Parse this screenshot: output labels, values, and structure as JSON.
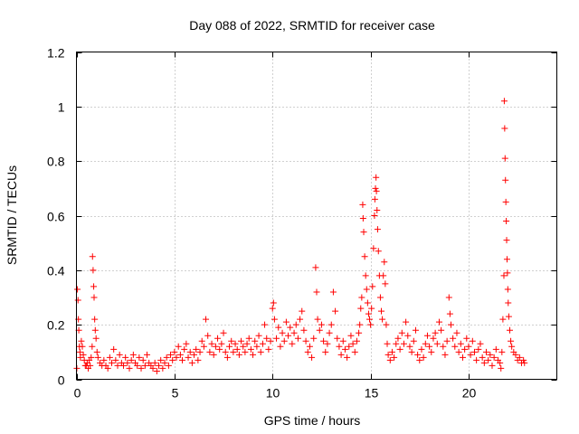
{
  "chart_data": {
    "type": "scatter",
    "title": "Day 088 of 2022, SRMTID for receiver case",
    "xlabel": "GPS time / hours",
    "ylabel": "SRMTID / TECUs",
    "xlim": [
      0,
      24.5
    ],
    "ylim": [
      0,
      1.2
    ],
    "x_ticks": [
      0,
      5,
      10,
      15,
      20
    ],
    "x_tick_labels": [
      "0",
      "5",
      "10",
      "15",
      "20"
    ],
    "y_ticks": [
      0,
      0.2,
      0.4,
      0.6,
      0.8,
      1.0,
      1.2
    ],
    "y_tick_labels": [
      "0",
      "0.2",
      "0.4",
      "0.6",
      "0.8",
      "1",
      "1.2"
    ],
    "grid": true,
    "marker": "+",
    "color": "#ff0000",
    "series": [
      {
        "name": "SRMTID",
        "points": [
          [
            0.02,
            0.04
          ],
          [
            0.05,
            0.33
          ],
          [
            0.08,
            0.29
          ],
          [
            0.1,
            0.22
          ],
          [
            0.12,
            0.18
          ],
          [
            0.15,
            0.12
          ],
          [
            0.18,
            0.1
          ],
          [
            0.2,
            0.08
          ],
          [
            0.25,
            0.14
          ],
          [
            0.3,
            0.12
          ],
          [
            0.35,
            0.09
          ],
          [
            0.4,
            0.07
          ],
          [
            0.45,
            0.05
          ],
          [
            0.5,
            0.05
          ],
          [
            0.55,
            0.06
          ],
          [
            0.6,
            0.04
          ],
          [
            0.65,
            0.07
          ],
          [
            0.7,
            0.05
          ],
          [
            0.75,
            0.08
          ],
          [
            0.8,
            0.12
          ],
          [
            0.82,
            0.45
          ],
          [
            0.85,
            0.4
          ],
          [
            0.88,
            0.34
          ],
          [
            0.9,
            0.3
          ],
          [
            0.93,
            0.22
          ],
          [
            0.96,
            0.18
          ],
          [
            1.0,
            0.15
          ],
          [
            1.05,
            0.1
          ],
          [
            1.1,
            0.08
          ],
          [
            1.2,
            0.06
          ],
          [
            1.3,
            0.05
          ],
          [
            1.4,
            0.07
          ],
          [
            1.5,
            0.05
          ],
          [
            1.6,
            0.04
          ],
          [
            1.7,
            0.08
          ],
          [
            1.8,
            0.06
          ],
          [
            1.9,
            0.11
          ],
          [
            2.0,
            0.07
          ],
          [
            2.1,
            0.05
          ],
          [
            2.2,
            0.09
          ],
          [
            2.3,
            0.06
          ],
          [
            2.4,
            0.05
          ],
          [
            2.5,
            0.08
          ],
          [
            2.6,
            0.06
          ],
          [
            2.7,
            0.04
          ],
          [
            2.8,
            0.07
          ],
          [
            2.9,
            0.09
          ],
          [
            3.0,
            0.06
          ],
          [
            3.1,
            0.05
          ],
          [
            3.2,
            0.08
          ],
          [
            3.3,
            0.04
          ],
          [
            3.4,
            0.07
          ],
          [
            3.5,
            0.05
          ],
          [
            3.6,
            0.09
          ],
          [
            3.7,
            0.06
          ],
          [
            3.8,
            0.05
          ],
          [
            3.9,
            0.04
          ],
          [
            4.0,
            0.06
          ],
          [
            4.1,
            0.03
          ],
          [
            4.2,
            0.05
          ],
          [
            4.3,
            0.07
          ],
          [
            4.4,
            0.04
          ],
          [
            4.5,
            0.06
          ],
          [
            4.6,
            0.08
          ],
          [
            4.7,
            0.05
          ],
          [
            4.8,
            0.09
          ],
          [
            4.9,
            0.07
          ],
          [
            5.0,
            0.1
          ],
          [
            5.1,
            0.08
          ],
          [
            5.2,
            0.12
          ],
          [
            5.3,
            0.09
          ],
          [
            5.4,
            0.07
          ],
          [
            5.5,
            0.11
          ],
          [
            5.6,
            0.13
          ],
          [
            5.7,
            0.08
          ],
          [
            5.8,
            0.1
          ],
          [
            5.9,
            0.06
          ],
          [
            6.0,
            0.09
          ],
          [
            6.1,
            0.11
          ],
          [
            6.2,
            0.07
          ],
          [
            6.3,
            0.1
          ],
          [
            6.4,
            0.14
          ],
          [
            6.5,
            0.12
          ],
          [
            6.6,
            0.22
          ],
          [
            6.7,
            0.16
          ],
          [
            6.8,
            0.1
          ],
          [
            6.9,
            0.13
          ],
          [
            7.0,
            0.09
          ],
          [
            7.1,
            0.12
          ],
          [
            7.2,
            0.15
          ],
          [
            7.3,
            0.11
          ],
          [
            7.4,
            0.13
          ],
          [
            7.5,
            0.17
          ],
          [
            7.6,
            0.1
          ],
          [
            7.7,
            0.08
          ],
          [
            7.8,
            0.12
          ],
          [
            7.9,
            0.14
          ],
          [
            8.0,
            0.1
          ],
          [
            8.1,
            0.13
          ],
          [
            8.2,
            0.11
          ],
          [
            8.3,
            0.09
          ],
          [
            8.4,
            0.14
          ],
          [
            8.5,
            0.12
          ],
          [
            8.6,
            0.1
          ],
          [
            8.7,
            0.13
          ],
          [
            8.8,
            0.15
          ],
          [
            8.9,
            0.11
          ],
          [
            9.0,
            0.09
          ],
          [
            9.1,
            0.14
          ],
          [
            9.2,
            0.12
          ],
          [
            9.3,
            0.16
          ],
          [
            9.4,
            0.1
          ],
          [
            9.5,
            0.13
          ],
          [
            9.6,
            0.2
          ],
          [
            9.7,
            0.15
          ],
          [
            9.8,
            0.11
          ],
          [
            9.9,
            0.14
          ],
          [
            10.0,
            0.26
          ],
          [
            10.05,
            0.28
          ],
          [
            10.1,
            0.22
          ],
          [
            10.2,
            0.15
          ],
          [
            10.3,
            0.19
          ],
          [
            10.4,
            0.12
          ],
          [
            10.5,
            0.17
          ],
          [
            10.6,
            0.14
          ],
          [
            10.7,
            0.21
          ],
          [
            10.8,
            0.16
          ],
          [
            10.9,
            0.19
          ],
          [
            11.0,
            0.13
          ],
          [
            11.1,
            0.17
          ],
          [
            11.2,
            0.2
          ],
          [
            11.3,
            0.15
          ],
          [
            11.4,
            0.22
          ],
          [
            11.5,
            0.25
          ],
          [
            11.6,
            0.18
          ],
          [
            11.7,
            0.14
          ],
          [
            11.8,
            0.1
          ],
          [
            11.9,
            0.12
          ],
          [
            12.0,
            0.08
          ],
          [
            12.1,
            0.15
          ],
          [
            12.2,
            0.41
          ],
          [
            12.25,
            0.32
          ],
          [
            12.3,
            0.22
          ],
          [
            12.4,
            0.18
          ],
          [
            12.5,
            0.2
          ],
          [
            12.6,
            0.14
          ],
          [
            12.7,
            0.1
          ],
          [
            12.8,
            0.13
          ],
          [
            12.9,
            0.17
          ],
          [
            13.0,
            0.2
          ],
          [
            13.1,
            0.32
          ],
          [
            13.2,
            0.25
          ],
          [
            13.3,
            0.15
          ],
          [
            13.4,
            0.12
          ],
          [
            13.5,
            0.09
          ],
          [
            13.6,
            0.14
          ],
          [
            13.7,
            0.11
          ],
          [
            13.8,
            0.08
          ],
          [
            13.9,
            0.12
          ],
          [
            14.0,
            0.16
          ],
          [
            14.1,
            0.13
          ],
          [
            14.2,
            0.1
          ],
          [
            14.3,
            0.14
          ],
          [
            14.4,
            0.17
          ],
          [
            14.45,
            0.2
          ],
          [
            14.5,
            0.26
          ],
          [
            14.55,
            0.3
          ],
          [
            14.6,
            0.64
          ],
          [
            14.62,
            0.59
          ],
          [
            14.65,
            0.54
          ],
          [
            14.7,
            0.45
          ],
          [
            14.75,
            0.38
          ],
          [
            14.8,
            0.33
          ],
          [
            14.85,
            0.28
          ],
          [
            14.9,
            0.24
          ],
          [
            14.95,
            0.22
          ],
          [
            15.0,
            0.2
          ],
          [
            15.05,
            0.26
          ],
          [
            15.1,
            0.34
          ],
          [
            15.15,
            0.48
          ],
          [
            15.2,
            0.6
          ],
          [
            15.22,
            0.66
          ],
          [
            15.25,
            0.7
          ],
          [
            15.28,
            0.74
          ],
          [
            15.3,
            0.69
          ],
          [
            15.33,
            0.62
          ],
          [
            15.36,
            0.55
          ],
          [
            15.4,
            0.47
          ],
          [
            15.45,
            0.38
          ],
          [
            15.5,
            0.3
          ],
          [
            15.55,
            0.25
          ],
          [
            15.6,
            0.22
          ],
          [
            15.65,
            0.38
          ],
          [
            15.7,
            0.43
          ],
          [
            15.75,
            0.35
          ],
          [
            15.8,
            0.2
          ],
          [
            15.85,
            0.13
          ],
          [
            15.9,
            0.09
          ],
          [
            16.0,
            0.07
          ],
          [
            16.1,
            0.1
          ],
          [
            16.2,
            0.08
          ],
          [
            16.3,
            0.13
          ],
          [
            16.4,
            0.15
          ],
          [
            16.5,
            0.11
          ],
          [
            16.6,
            0.17
          ],
          [
            16.7,
            0.13
          ],
          [
            16.8,
            0.21
          ],
          [
            16.9,
            0.16
          ],
          [
            17.0,
            0.12
          ],
          [
            17.1,
            0.1
          ],
          [
            17.2,
            0.14
          ],
          [
            17.3,
            0.18
          ],
          [
            17.4,
            0.09
          ],
          [
            17.5,
            0.07
          ],
          [
            17.6,
            0.11
          ],
          [
            17.7,
            0.08
          ],
          [
            17.8,
            0.13
          ],
          [
            17.9,
            0.16
          ],
          [
            18.0,
            0.12
          ],
          [
            18.1,
            0.1
          ],
          [
            18.2,
            0.15
          ],
          [
            18.3,
            0.17
          ],
          [
            18.4,
            0.13
          ],
          [
            18.5,
            0.21
          ],
          [
            18.6,
            0.18
          ],
          [
            18.7,
            0.12
          ],
          [
            18.8,
            0.09
          ],
          [
            18.9,
            0.14
          ],
          [
            19.0,
            0.3
          ],
          [
            19.05,
            0.24
          ],
          [
            19.1,
            0.2
          ],
          [
            19.2,
            0.15
          ],
          [
            19.3,
            0.12
          ],
          [
            19.4,
            0.17
          ],
          [
            19.5,
            0.1
          ],
          [
            19.6,
            0.13
          ],
          [
            19.7,
            0.08
          ],
          [
            19.8,
            0.11
          ],
          [
            19.9,
            0.15
          ],
          [
            20.0,
            0.12
          ],
          [
            20.1,
            0.09
          ],
          [
            20.2,
            0.14
          ],
          [
            20.3,
            0.1
          ],
          [
            20.4,
            0.07
          ],
          [
            20.5,
            0.11
          ],
          [
            20.6,
            0.13
          ],
          [
            20.7,
            0.08
          ],
          [
            20.8,
            0.06
          ],
          [
            20.9,
            0.1
          ],
          [
            21.0,
            0.07
          ],
          [
            21.1,
            0.09
          ],
          [
            21.2,
            0.05
          ],
          [
            21.3,
            0.08
          ],
          [
            21.4,
            0.11
          ],
          [
            21.5,
            0.07
          ],
          [
            21.6,
            0.06
          ],
          [
            21.65,
            0.04
          ],
          [
            21.7,
            0.1
          ],
          [
            21.75,
            0.22
          ],
          [
            21.8,
            0.38
          ],
          [
            21.82,
            1.02
          ],
          [
            21.84,
            0.92
          ],
          [
            21.86,
            0.81
          ],
          [
            21.88,
            0.73
          ],
          [
            21.9,
            0.65
          ],
          [
            21.92,
            0.58
          ],
          [
            21.94,
            0.51
          ],
          [
            21.96,
            0.44
          ],
          [
            21.98,
            0.39
          ],
          [
            22.0,
            0.33
          ],
          [
            22.02,
            0.28
          ],
          [
            22.05,
            0.23
          ],
          [
            22.1,
            0.18
          ],
          [
            22.15,
            0.14
          ],
          [
            22.2,
            0.12
          ],
          [
            22.3,
            0.1
          ],
          [
            22.4,
            0.09
          ],
          [
            22.5,
            0.07
          ],
          [
            22.6,
            0.08
          ],
          [
            22.7,
            0.06
          ],
          [
            22.8,
            0.07
          ],
          [
            22.85,
            0.06
          ]
        ]
      }
    ]
  }
}
